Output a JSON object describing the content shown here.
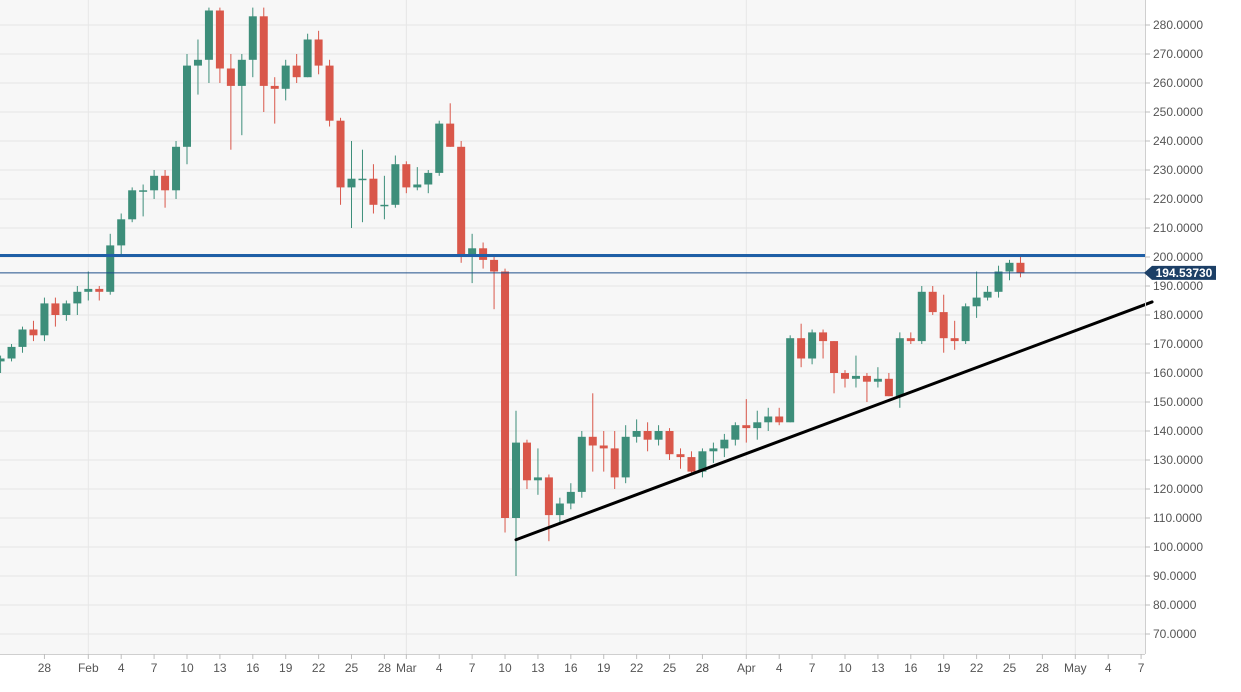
{
  "chart_data": {
    "type": "candlestick",
    "symbol_note": "",
    "y_axis": {
      "position": "right",
      "ticks": [
        70,
        80,
        90,
        100,
        110,
        120,
        130,
        140,
        150,
        160,
        170,
        180,
        190,
        200,
        210,
        220,
        230,
        240,
        250,
        260,
        270,
        280
      ],
      "tick_labels": [
        "70.0000",
        "80.0000",
        "90.0000",
        "100.0000",
        "110.0000",
        "120.0000",
        "130.0000",
        "140.0000",
        "150.0000",
        "160.0000",
        "170.0000",
        "180.0000",
        "190.0000",
        "200.0000",
        "210.0000",
        "220.0000",
        "230.0000",
        "240.0000",
        "250.0000",
        "260.0000",
        "270.0000",
        "280.0000"
      ],
      "ylim": [
        64,
        288
      ]
    },
    "x_axis": {
      "start_date": "2020-01-25",
      "end_date": "2020-05-08",
      "gridlines": [
        "2020-02-01",
        "2020-03-01",
        "2020-04-01",
        "2020-05-01"
      ],
      "tick_labels": [
        {
          "date": "2020-01-28",
          "label": "28"
        },
        {
          "date": "2020-02-01",
          "label": "Feb"
        },
        {
          "date": "2020-02-04",
          "label": "4"
        },
        {
          "date": "2020-02-07",
          "label": "7"
        },
        {
          "date": "2020-02-10",
          "label": "10"
        },
        {
          "date": "2020-02-13",
          "label": "13"
        },
        {
          "date": "2020-02-16",
          "label": "16"
        },
        {
          "date": "2020-02-19",
          "label": "19"
        },
        {
          "date": "2020-02-22",
          "label": "22"
        },
        {
          "date": "2020-02-25",
          "label": "25"
        },
        {
          "date": "2020-02-28",
          "label": "28"
        },
        {
          "date": "2020-03-01",
          "label": "Mar"
        },
        {
          "date": "2020-03-04",
          "label": "4"
        },
        {
          "date": "2020-03-07",
          "label": "7"
        },
        {
          "date": "2020-03-10",
          "label": "10"
        },
        {
          "date": "2020-03-13",
          "label": "13"
        },
        {
          "date": "2020-03-16",
          "label": "16"
        },
        {
          "date": "2020-03-19",
          "label": "19"
        },
        {
          "date": "2020-03-22",
          "label": "22"
        },
        {
          "date": "2020-03-25",
          "label": "25"
        },
        {
          "date": "2020-03-28",
          "label": "28"
        },
        {
          "date": "2020-04-01",
          "label": "Apr"
        },
        {
          "date": "2020-04-04",
          "label": "4"
        },
        {
          "date": "2020-04-07",
          "label": "7"
        },
        {
          "date": "2020-04-10",
          "label": "10"
        },
        {
          "date": "2020-04-13",
          "label": "13"
        },
        {
          "date": "2020-04-16",
          "label": "16"
        },
        {
          "date": "2020-04-19",
          "label": "19"
        },
        {
          "date": "2020-04-22",
          "label": "22"
        },
        {
          "date": "2020-04-25",
          "label": "25"
        },
        {
          "date": "2020-04-28",
          "label": "28"
        },
        {
          "date": "2020-05-01",
          "label": "May"
        },
        {
          "date": "2020-05-04",
          "label": "4"
        },
        {
          "date": "2020-05-07",
          "label": "7"
        }
      ]
    },
    "candles": [
      {
        "date": "2020-01-24",
        "o": 164,
        "h": 166,
        "l": 160,
        "c": 165
      },
      {
        "date": "2020-01-25",
        "o": 165,
        "h": 170,
        "l": 164,
        "c": 169
      },
      {
        "date": "2020-01-26",
        "o": 169,
        "h": 176,
        "l": 167,
        "c": 175
      },
      {
        "date": "2020-01-27",
        "o": 175,
        "h": 178,
        "l": 171,
        "c": 173
      },
      {
        "date": "2020-01-28",
        "o": 173,
        "h": 186,
        "l": 171,
        "c": 184
      },
      {
        "date": "2020-01-29",
        "o": 184,
        "h": 186,
        "l": 176,
        "c": 180
      },
      {
        "date": "2020-01-30",
        "o": 180,
        "h": 185,
        "l": 178,
        "c": 184
      },
      {
        "date": "2020-01-31",
        "o": 184,
        "h": 190,
        "l": 180,
        "c": 188
      },
      {
        "date": "2020-02-01",
        "o": 188,
        "h": 195,
        "l": 185,
        "c": 189
      },
      {
        "date": "2020-02-02",
        "o": 189,
        "h": 190,
        "l": 185,
        "c": 188
      },
      {
        "date": "2020-02-03",
        "o": 188,
        "h": 208,
        "l": 187,
        "c": 204
      },
      {
        "date": "2020-02-04",
        "o": 204,
        "h": 215,
        "l": 201,
        "c": 213
      },
      {
        "date": "2020-02-05",
        "o": 213,
        "h": 224,
        "l": 212,
        "c": 223
      },
      {
        "date": "2020-02-06",
        "o": 223,
        "h": 225,
        "l": 214,
        "c": 223
      },
      {
        "date": "2020-02-07",
        "o": 223,
        "h": 230,
        "l": 220,
        "c": 228
      },
      {
        "date": "2020-02-08",
        "o": 228,
        "h": 230,
        "l": 217,
        "c": 223
      },
      {
        "date": "2020-02-09",
        "o": 223,
        "h": 240,
        "l": 220,
        "c": 238
      },
      {
        "date": "2020-02-10",
        "o": 238,
        "h": 270,
        "l": 232,
        "c": 266
      },
      {
        "date": "2020-02-11",
        "o": 266,
        "h": 275,
        "l": 256,
        "c": 268
      },
      {
        "date": "2020-02-12",
        "o": 268,
        "h": 286,
        "l": 260,
        "c": 285
      },
      {
        "date": "2020-02-13",
        "o": 285,
        "h": 286,
        "l": 260,
        "c": 265
      },
      {
        "date": "2020-02-14",
        "o": 265,
        "h": 270,
        "l": 237,
        "c": 259
      },
      {
        "date": "2020-02-15",
        "o": 259,
        "h": 270,
        "l": 242,
        "c": 268
      },
      {
        "date": "2020-02-16",
        "o": 268,
        "h": 286,
        "l": 262,
        "c": 283
      },
      {
        "date": "2020-02-17",
        "o": 283,
        "h": 286,
        "l": 250,
        "c": 259
      },
      {
        "date": "2020-02-18",
        "o": 259,
        "h": 262,
        "l": 246,
        "c": 258
      },
      {
        "date": "2020-02-19",
        "o": 258,
        "h": 268,
        "l": 254,
        "c": 266
      },
      {
        "date": "2020-02-20",
        "o": 266,
        "h": 270,
        "l": 260,
        "c": 262
      },
      {
        "date": "2020-02-21",
        "o": 262,
        "h": 277,
        "l": 262,
        "c": 275
      },
      {
        "date": "2020-02-22",
        "o": 275,
        "h": 278,
        "l": 263,
        "c": 266
      },
      {
        "date": "2020-02-23",
        "o": 266,
        "h": 268,
        "l": 245,
        "c": 247
      },
      {
        "date": "2020-02-24",
        "o": 247,
        "h": 248,
        "l": 218,
        "c": 224
      },
      {
        "date": "2020-02-25",
        "o": 224,
        "h": 240,
        "l": 210,
        "c": 227
      },
      {
        "date": "2020-02-26",
        "o": 227,
        "h": 237,
        "l": 212,
        "c": 227
      },
      {
        "date": "2020-02-27",
        "o": 227,
        "h": 232,
        "l": 215,
        "c": 218
      },
      {
        "date": "2020-02-28",
        "o": 218,
        "h": 228,
        "l": 213,
        "c": 218
      },
      {
        "date": "2020-02-29",
        "o": 218,
        "h": 235,
        "l": 217,
        "c": 232
      },
      {
        "date": "2020-03-01",
        "o": 232,
        "h": 233,
        "l": 222,
        "c": 224
      },
      {
        "date": "2020-03-02",
        "o": 224,
        "h": 231,
        "l": 223,
        "c": 225
      },
      {
        "date": "2020-03-03",
        "o": 225,
        "h": 230,
        "l": 222,
        "c": 229
      },
      {
        "date": "2020-03-04",
        "o": 229,
        "h": 247,
        "l": 228,
        "c": 246
      },
      {
        "date": "2020-03-05",
        "o": 246,
        "h": 253,
        "l": 238,
        "c": 238
      },
      {
        "date": "2020-03-06",
        "o": 238,
        "h": 240,
        "l": 198,
        "c": 200
      },
      {
        "date": "2020-03-07",
        "o": 200,
        "h": 208,
        "l": 191,
        "c": 203
      },
      {
        "date": "2020-03-08",
        "o": 203,
        "h": 205,
        "l": 196,
        "c": 199
      },
      {
        "date": "2020-03-09",
        "o": 199,
        "h": 201,
        "l": 182,
        "c": 195
      },
      {
        "date": "2020-03-10",
        "o": 195,
        "h": 196,
        "l": 105,
        "c": 110
      },
      {
        "date": "2020-03-11",
        "o": 110,
        "h": 147,
        "l": 90,
        "c": 136
      },
      {
        "date": "2020-03-12",
        "o": 136,
        "h": 137,
        "l": 120,
        "c": 123
      },
      {
        "date": "2020-03-13",
        "o": 123,
        "h": 134,
        "l": 118,
        "c": 124
      },
      {
        "date": "2020-03-14",
        "o": 124,
        "h": 125,
        "l": 102,
        "c": 111
      },
      {
        "date": "2020-03-15",
        "o": 111,
        "h": 117,
        "l": 108,
        "c": 115
      },
      {
        "date": "2020-03-16",
        "o": 115,
        "h": 122,
        "l": 113,
        "c": 119
      },
      {
        "date": "2020-03-17",
        "o": 119,
        "h": 140,
        "l": 117,
        "c": 138
      },
      {
        "date": "2020-03-18",
        "o": 138,
        "h": 153,
        "l": 126,
        "c": 135
      },
      {
        "date": "2020-03-19",
        "o": 135,
        "h": 140,
        "l": 126,
        "c": 134
      },
      {
        "date": "2020-03-20",
        "o": 134,
        "h": 140,
        "l": 120,
        "c": 124
      },
      {
        "date": "2020-03-21",
        "o": 124,
        "h": 142,
        "l": 122,
        "c": 138
      },
      {
        "date": "2020-03-22",
        "o": 138,
        "h": 144,
        "l": 136,
        "c": 140
      },
      {
        "date": "2020-03-23",
        "o": 140,
        "h": 143,
        "l": 133,
        "c": 137
      },
      {
        "date": "2020-03-24",
        "o": 137,
        "h": 142,
        "l": 135,
        "c": 140
      },
      {
        "date": "2020-03-25",
        "o": 140,
        "h": 141,
        "l": 130,
        "c": 132
      },
      {
        "date": "2020-03-26",
        "o": 132,
        "h": 134,
        "l": 127,
        "c": 131
      },
      {
        "date": "2020-03-27",
        "o": 131,
        "h": 133,
        "l": 125,
        "c": 126
      },
      {
        "date": "2020-03-28",
        "o": 126,
        "h": 134,
        "l": 124,
        "c": 133
      },
      {
        "date": "2020-03-29",
        "o": 133,
        "h": 136,
        "l": 129,
        "c": 134
      },
      {
        "date": "2020-03-30",
        "o": 134,
        "h": 139,
        "l": 131,
        "c": 137
      },
      {
        "date": "2020-03-31",
        "o": 137,
        "h": 143,
        "l": 135,
        "c": 142
      },
      {
        "date": "2020-04-01",
        "o": 142,
        "h": 151,
        "l": 136,
        "c": 141
      },
      {
        "date": "2020-04-02",
        "o": 141,
        "h": 147,
        "l": 137,
        "c": 143
      },
      {
        "date": "2020-04-03",
        "o": 143,
        "h": 148,
        "l": 140,
        "c": 145
      },
      {
        "date": "2020-04-04",
        "o": 145,
        "h": 148,
        "l": 142,
        "c": 143
      },
      {
        "date": "2020-04-05",
        "o": 143,
        "h": 173,
        "l": 143,
        "c": 172
      },
      {
        "date": "2020-04-06",
        "o": 172,
        "h": 177,
        "l": 162,
        "c": 165
      },
      {
        "date": "2020-04-07",
        "o": 165,
        "h": 175,
        "l": 163,
        "c": 174
      },
      {
        "date": "2020-04-08",
        "o": 174,
        "h": 175,
        "l": 165,
        "c": 171
      },
      {
        "date": "2020-04-09",
        "o": 171,
        "h": 171,
        "l": 153,
        "c": 160
      },
      {
        "date": "2020-04-10",
        "o": 160,
        "h": 161,
        "l": 155,
        "c": 158
      },
      {
        "date": "2020-04-11",
        "o": 158,
        "h": 166,
        "l": 155,
        "c": 159
      },
      {
        "date": "2020-04-12",
        "o": 159,
        "h": 160,
        "l": 150,
        "c": 157
      },
      {
        "date": "2020-04-13",
        "o": 157,
        "h": 162,
        "l": 155,
        "c": 158
      },
      {
        "date": "2020-04-14",
        "o": 158,
        "h": 160,
        "l": 152,
        "c": 152
      },
      {
        "date": "2020-04-15",
        "o": 152,
        "h": 174,
        "l": 148,
        "c": 172
      },
      {
        "date": "2020-04-16",
        "o": 172,
        "h": 174,
        "l": 170,
        "c": 171
      },
      {
        "date": "2020-04-17",
        "o": 171,
        "h": 190,
        "l": 170,
        "c": 188
      },
      {
        "date": "2020-04-18",
        "o": 188,
        "h": 190,
        "l": 180,
        "c": 181
      },
      {
        "date": "2020-04-19",
        "o": 181,
        "h": 187,
        "l": 167,
        "c": 172
      },
      {
        "date": "2020-04-20",
        "o": 172,
        "h": 178,
        "l": 168,
        "c": 171
      },
      {
        "date": "2020-04-21",
        "o": 171,
        "h": 184,
        "l": 170,
        "c": 183
      },
      {
        "date": "2020-04-22",
        "o": 183,
        "h": 195,
        "l": 179,
        "c": 186
      },
      {
        "date": "2020-04-23",
        "o": 186,
        "h": 190,
        "l": 185,
        "c": 188
      },
      {
        "date": "2020-04-24",
        "o": 188,
        "h": 197,
        "l": 186,
        "c": 195
      },
      {
        "date": "2020-04-25",
        "o": 195,
        "h": 199,
        "l": 192,
        "c": 198
      },
      {
        "date": "2020-04-26",
        "o": 198,
        "h": 200,
        "l": 193,
        "c": 194.5373
      }
    ],
    "horizontal_lines": [
      {
        "value": 200.5,
        "color": "#1f5fa6",
        "weight": "thick"
      },
      {
        "value": 194.5373,
        "color": "#1f4f8a",
        "weight": "thin"
      }
    ],
    "trendline": {
      "start": {
        "date": "2020-03-11",
        "value": 102.5
      },
      "end": {
        "date": "2020-05-08",
        "value": 184.5
      },
      "color": "#000000"
    },
    "last_price_label": "194.53730",
    "colors": {
      "bullish": "#3d8e7a",
      "bearish": "#d9574a",
      "grid": "#e6e6e6",
      "axis_text": "#555555",
      "price_label_bg": "#1c3f66",
      "price_label_text": "#ffffff",
      "plot_bg": "#f7f7f7"
    }
  }
}
